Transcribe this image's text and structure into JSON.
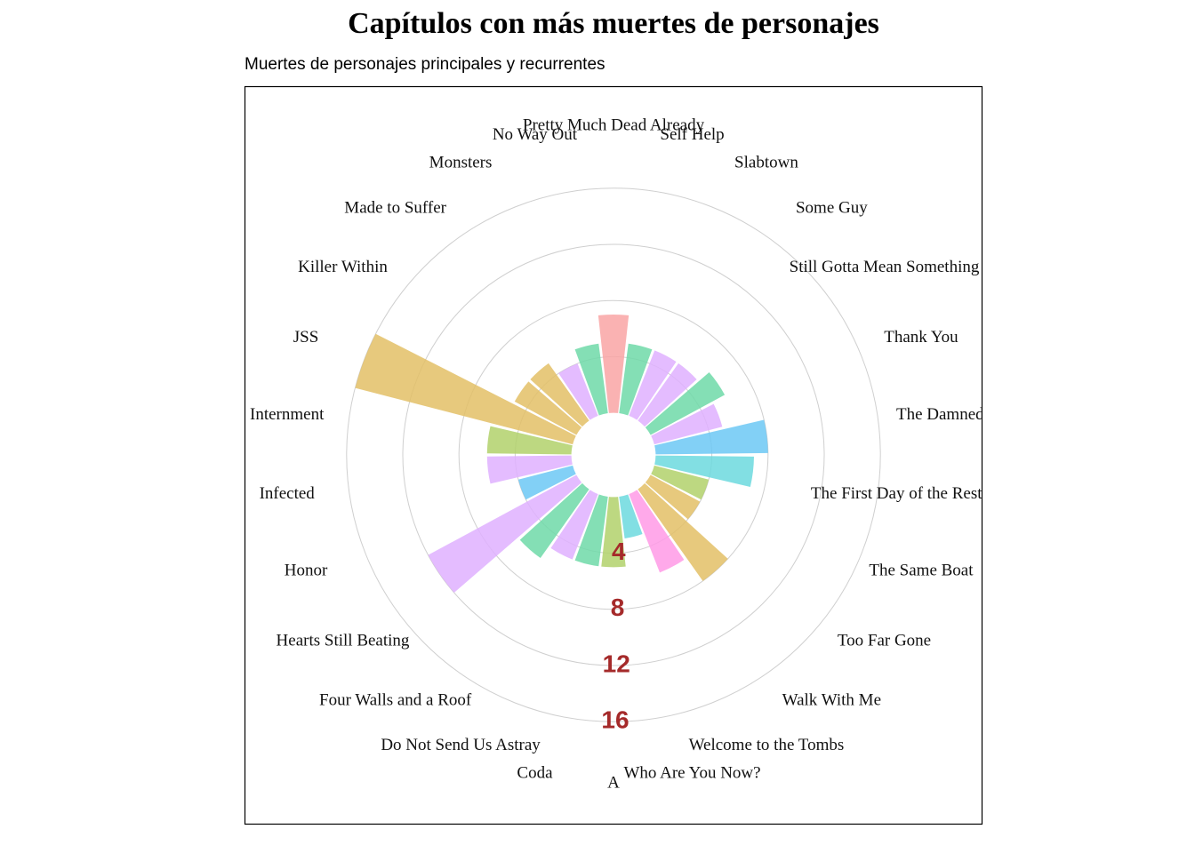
{
  "chart_data": {
    "type": "bar",
    "polar": true,
    "title": "Capítulos con más muertes de personajes",
    "subtitle": "Muertes de personajes principales y recurrentes",
    "categories": [
      "A",
      "Coda",
      "Do Not Send Us Astray",
      "Four Walls and a Roof",
      "Hearts Still Beating",
      "Honor",
      "Infected",
      "Internment",
      "JSS",
      "Killer Within",
      "Made to Suffer",
      "Monsters",
      "No Way Out",
      "Pretty Much Dead Already",
      "Self Help",
      "Slabtown",
      "Some Guy",
      "Still Gotta Mean Something",
      "Thank You",
      "The Damned",
      "The First Day of the Rest of Your Life",
      "The Same Boat",
      "Too Far Gone",
      "Walk With Me",
      "Welcome to the Tombs",
      "Who Are You Now?"
    ],
    "values": [
      5,
      5,
      5,
      6,
      12,
      4,
      6,
      6,
      16,
      5,
      5,
      4,
      5,
      7,
      5,
      5,
      5,
      6,
      5,
      8,
      7,
      4,
      4,
      8,
      6,
      3
    ],
    "colors": [
      "#b2d16b",
      "#6ed9a8",
      "#dfb0ff",
      "#6ed9a8",
      "#dfb0ff",
      "#6cc8f5",
      "#dfb0ff",
      "#b2d16b",
      "#e3bf66",
      "#e3bf66",
      "#e3bf66",
      "#dfb0ff",
      "#6ed9a8",
      "#f9a4a4",
      "#6ed9a8",
      "#dfb0ff",
      "#dfb0ff",
      "#6ed9a8",
      "#dfb0ff",
      "#6cc8f5",
      "#6cd9de",
      "#b2d16b",
      "#e3bf66",
      "#e3bf66",
      "#ff9ae6",
      "#6cd9de"
    ],
    "radial_ticks": [
      "4",
      "8",
      "12",
      "16"
    ],
    "radial_tick_values": [
      4,
      8,
      12,
      16
    ],
    "rlim": [
      -3,
      16
    ],
    "grid": true,
    "legend": "none"
  }
}
